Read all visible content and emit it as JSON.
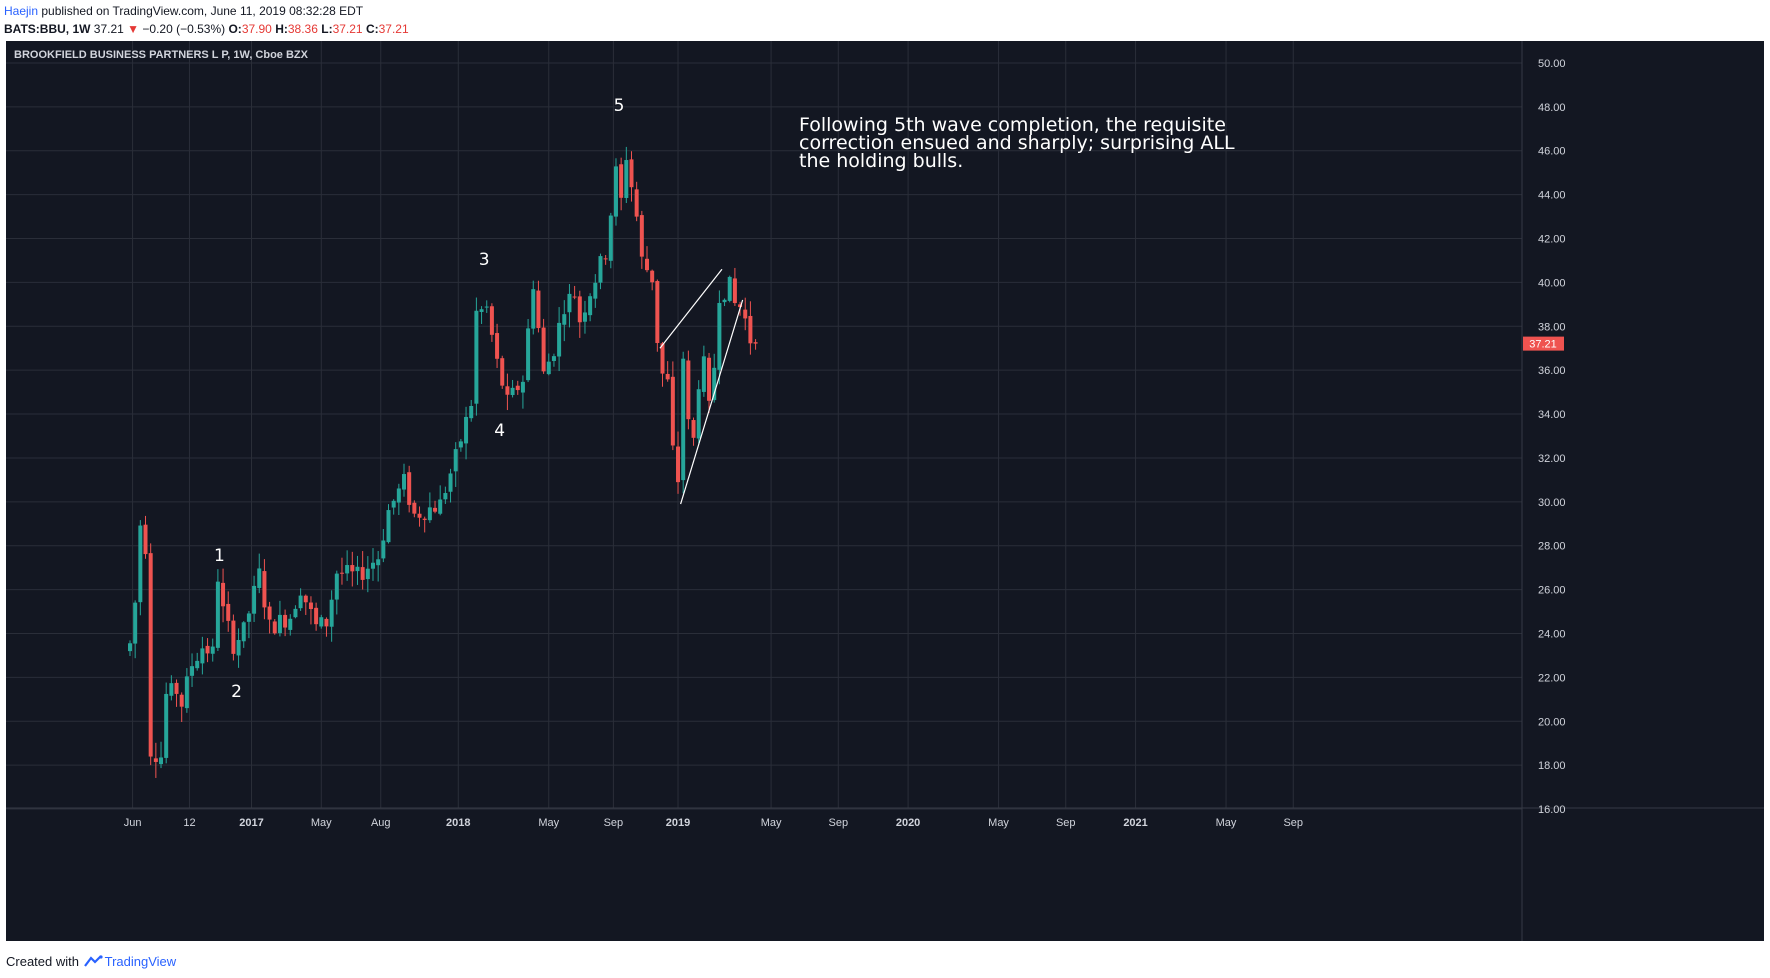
{
  "header": {
    "author": "Haejin",
    "published": " published on TradingView.com, June 11, 2019 08:32:28 EDT",
    "symbol_line": "BATS:BBU, 1W",
    "last": "37.21",
    "change": "−0.20 (−0.53%)",
    "o_label": "O:",
    "o_val": "37.90",
    "h_label": "H:",
    "h_val": "38.36",
    "l_label": "L:",
    "l_val": "37.21",
    "c_label": "C:",
    "c_val": "37.21"
  },
  "footer": {
    "created": "Created with",
    "brand": "TradingView"
  },
  "chart_data": {
    "type": "candlestick",
    "title": "BROOKFIELD BUSINESS PARTNERS L P, 1W, Cboe BZX",
    "colors": {
      "background": "#131722",
      "up": "#26a69a",
      "down": "#ef5350",
      "grid": "#2a2e39",
      "text": "#d1d4dc",
      "price_tag": "#ef5350",
      "lines": "#ffffff"
    },
    "grid": true,
    "ylim": [
      15,
      51
    ],
    "y_ticks": [
      "16.00",
      "18.00",
      "20.00",
      "22.00",
      "24.00",
      "26.00",
      "28.00",
      "30.00",
      "32.00",
      "34.00",
      "36.00",
      "38.00",
      "40.00",
      "42.00",
      "44.00",
      "46.00",
      "48.00",
      "50.00"
    ],
    "last_price_tag": "37.21",
    "x_ticks": [
      "Jun",
      "12",
      "2017",
      "May",
      "Aug",
      "2018",
      "May",
      "Sep",
      "2019",
      "May",
      "Sep",
      "2020",
      "May",
      "Sep",
      "2021",
      "May",
      "Sep"
    ],
    "x_tick_weeks": [
      0.5,
      11.5,
      23.5,
      37,
      48.5,
      63.5,
      81,
      93.5,
      106,
      124,
      137,
      150.5,
      168,
      181,
      194.5,
      212,
      225
    ],
    "total_weeks": 242,
    "anchors": [
      {
        "w": 0,
        "p": 23.5
      },
      {
        "w": 1,
        "p": 25.4
      },
      {
        "w": 2,
        "p": 29.0
      },
      {
        "w": 3,
        "p": 28.0
      },
      {
        "w": 4,
        "p": 18.7
      },
      {
        "w": 6,
        "p": 18.4
      },
      {
        "w": 7,
        "p": 21.2
      },
      {
        "w": 9,
        "p": 21.4
      },
      {
        "w": 10,
        "p": 20.8
      },
      {
        "w": 12,
        "p": 22.6
      },
      {
        "w": 14,
        "p": 23.4
      },
      {
        "w": 16,
        "p": 23.1
      },
      {
        "w": 17,
        "p": 26.6
      },
      {
        "w": 18,
        "p": 25.0
      },
      {
        "w": 20,
        "p": 23.5
      },
      {
        "w": 22,
        "p": 24.1
      },
      {
        "w": 25,
        "p": 26.7
      },
      {
        "w": 27,
        "p": 24.3
      },
      {
        "w": 31,
        "p": 24.8
      },
      {
        "w": 33,
        "p": 26.1
      },
      {
        "w": 36,
        "p": 24.3
      },
      {
        "w": 38,
        "p": 24.5
      },
      {
        "w": 40,
        "p": 26.8
      },
      {
        "w": 44,
        "p": 26.6
      },
      {
        "w": 48,
        "p": 27.5
      },
      {
        "w": 50,
        "p": 29.6
      },
      {
        "w": 53,
        "p": 30.9
      },
      {
        "w": 55,
        "p": 29.4
      },
      {
        "w": 60,
        "p": 29.9
      },
      {
        "w": 63,
        "p": 32.0
      },
      {
        "w": 66,
        "p": 34.5
      },
      {
        "w": 67,
        "p": 38.6
      },
      {
        "w": 69,
        "p": 38.8
      },
      {
        "w": 71,
        "p": 36.3
      },
      {
        "w": 73,
        "p": 34.5
      },
      {
        "w": 76,
        "p": 35.6
      },
      {
        "w": 78,
        "p": 40.0
      },
      {
        "w": 80,
        "p": 35.8
      },
      {
        "w": 82,
        "p": 37.0
      },
      {
        "w": 84,
        "p": 39.0
      },
      {
        "w": 86,
        "p": 39.5
      },
      {
        "w": 87,
        "p": 38.3
      },
      {
        "w": 89,
        "p": 39.6
      },
      {
        "w": 92,
        "p": 41.4
      },
      {
        "w": 94,
        "p": 45.0
      },
      {
        "w": 95,
        "p": 43.7
      },
      {
        "w": 96,
        "p": 45.8
      },
      {
        "w": 98,
        "p": 43.0
      },
      {
        "w": 99,
        "p": 41.0
      },
      {
        "w": 101,
        "p": 40.2
      },
      {
        "w": 102,
        "p": 37.4
      },
      {
        "w": 103,
        "p": 35.8
      },
      {
        "w": 104,
        "p": 35.4
      },
      {
        "w": 105,
        "p": 32.3
      },
      {
        "w": 106,
        "p": 31.0
      },
      {
        "w": 107,
        "p": 36.6
      },
      {
        "w": 108,
        "p": 33.5
      },
      {
        "w": 109,
        "p": 32.8
      },
      {
        "w": 110,
        "p": 35.5
      },
      {
        "w": 111,
        "p": 36.2
      },
      {
        "w": 112,
        "p": 34.2
      },
      {
        "w": 113,
        "p": 36.2
      },
      {
        "w": 114,
        "p": 39.5
      },
      {
        "w": 116,
        "p": 39.8
      },
      {
        "w": 117,
        "p": 39.0
      },
      {
        "w": 118,
        "p": 38.9
      },
      {
        "w": 119,
        "p": 38.3
      },
      {
        "w": 120,
        "p": 37.4
      },
      {
        "w": 121,
        "p": 37.21
      }
    ],
    "annotations": [
      {
        "label": "1",
        "w": 17.3,
        "p": 27.3
      },
      {
        "label": "2",
        "w": 20.6,
        "p": 21.1
      },
      {
        "label": "3",
        "w": 68.5,
        "p": 40.8
      },
      {
        "label": "4",
        "w": 71.5,
        "p": 33.0
      },
      {
        "label": "5",
        "w": 94.6,
        "p": 47.8
      }
    ],
    "note": "Following 5th wave completion, the requisite\ncorrection ensued and sharply; surprising ALL\nthe holding bulls.",
    "trendlines": [
      {
        "w1": 102.5,
        "p1": 37.0,
        "w2": 114.5,
        "p2": 40.6
      },
      {
        "w1": 106.5,
        "p1": 29.9,
        "w2": 118.5,
        "p2": 39.2
      }
    ]
  }
}
